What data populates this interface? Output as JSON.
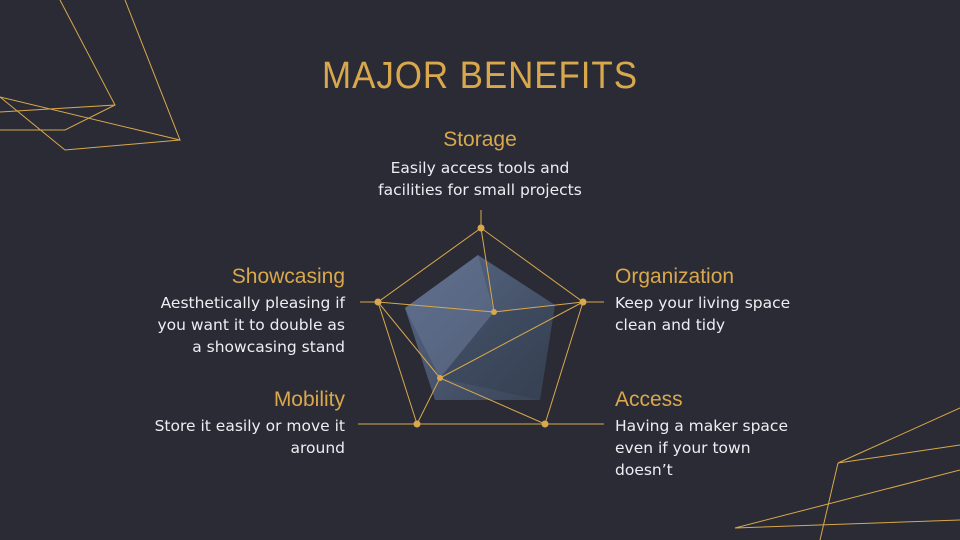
{
  "slide": {
    "title": "MAJOR BENEFITS"
  },
  "benefits": [
    {
      "heading": "Storage",
      "text_lines": [
        "Easily access tools and",
        "facilities for small projects"
      ]
    },
    {
      "heading": "Organization",
      "text_lines": [
        "Keep your living space",
        "clean and tidy"
      ]
    },
    {
      "heading": "Access",
      "text_lines": [
        "Having a maker space",
        "even if your town",
        "doesn’t"
      ]
    },
    {
      "heading": "Mobility",
      "text_lines": [
        "Store it easily or move it",
        "around"
      ]
    },
    {
      "heading": "Showcasing",
      "text_lines": [
        "Aesthetically pleasing if",
        "you want it to double as",
        "a showcasing stand"
      ]
    }
  ],
  "colors": {
    "background": "#2a2b35",
    "accent": "#d9a84c",
    "text": "#eceef2",
    "radar_fill": "#4c5a75"
  }
}
